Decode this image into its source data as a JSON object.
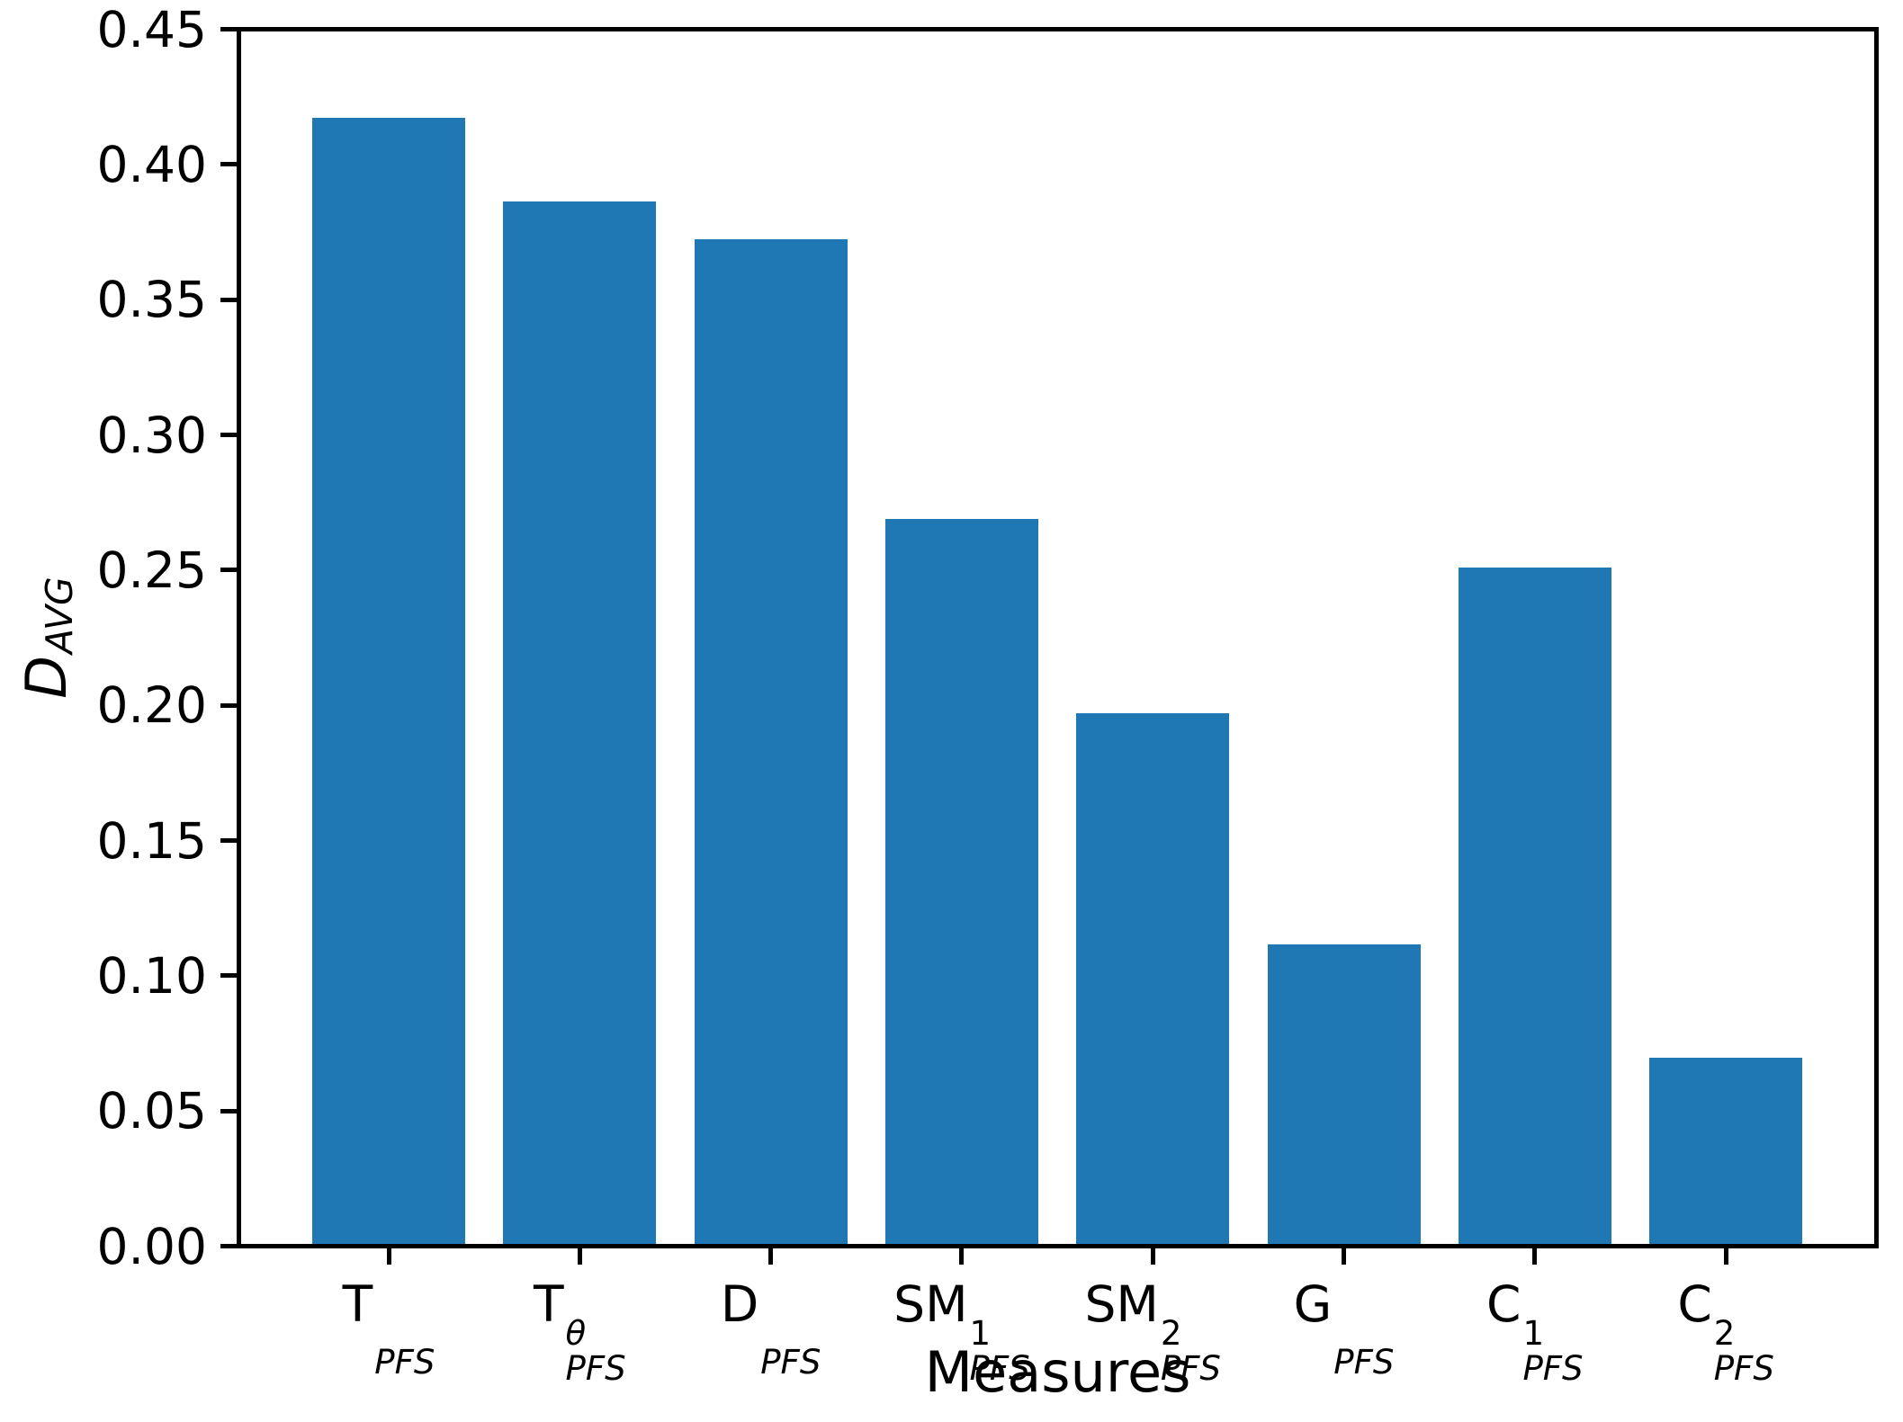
{
  "figure": {
    "background": "#ffffff",
    "bar_color": "#1f77b4",
    "axis_color": "#000000"
  },
  "chart_data": {
    "type": "bar",
    "title": "",
    "xlabel": "Measures",
    "ylabel": "D_AVG",
    "ylabel_base": "D",
    "ylabel_sub": "AVG",
    "ylim": [
      0,
      0.45
    ],
    "ytick_step": 0.05,
    "ytick_labels": [
      "0.00",
      "0.05",
      "0.10",
      "0.15",
      "0.20",
      "0.25",
      "0.30",
      "0.35",
      "0.40",
      "0.45"
    ],
    "grid": false,
    "legend": null,
    "categories": [
      {
        "plain": "T_PFS",
        "base": "T",
        "sup": "",
        "sub": "PFS"
      },
      {
        "plain": "T^θ_PFS",
        "base": "T",
        "sup": "θ",
        "sub": "PFS"
      },
      {
        "plain": "D_PFS",
        "base": "D",
        "sup": "",
        "sub": "PFS"
      },
      {
        "plain": "SM^1_PFS",
        "base": "SM",
        "sup": "1",
        "sub": "PFS"
      },
      {
        "plain": "SM^2_PFS",
        "base": "SM",
        "sup": "2",
        "sub": "PFS"
      },
      {
        "plain": "G_PFS",
        "base": "G",
        "sup": "",
        "sub": "PFS"
      },
      {
        "plain": "C^1_PFS",
        "base": "C",
        "sup": "1",
        "sub": "PFS"
      },
      {
        "plain": "C^2_PFS",
        "base": "C",
        "sup": "2",
        "sub": "PFS"
      }
    ],
    "values": [
      0.418,
      0.387,
      0.373,
      0.269,
      0.197,
      0.111,
      0.251,
      0.069
    ]
  }
}
